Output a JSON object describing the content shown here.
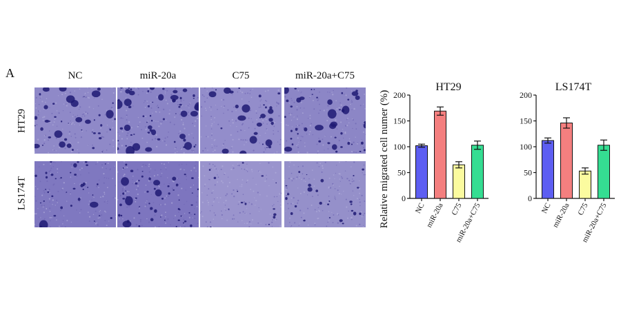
{
  "panel_label": "A",
  "image_grid": {
    "columns": [
      "NC",
      "miR-20a",
      "C75",
      "miR-20a+C75"
    ],
    "rows": [
      "HT29",
      "LS174T"
    ]
  },
  "colors": {
    "stain_bg": "#8c86c4",
    "stain_dark": "#1f1a73",
    "bar_colors": [
      "#5d5ef2",
      "#f47f7f",
      "#fbfb9f",
      "#35dd92"
    ]
  },
  "chart_data": [
    {
      "type": "bar",
      "title": "HT29",
      "ylabel": "Relative migrated cell numer (%)",
      "categories": [
        "NC",
        "miR-20a",
        "C75",
        "miR-20a+C75"
      ],
      "values": [
        102,
        169,
        65,
        103
      ],
      "errors": [
        3,
        8,
        6,
        8
      ],
      "ylim": [
        0,
        200
      ],
      "yticks": [
        0,
        50,
        100,
        150,
        200
      ]
    },
    {
      "type": "bar",
      "title": "LS174T",
      "ylabel": "",
      "categories": [
        "NC",
        "miR-20a",
        "C75",
        "miR-20a+C75"
      ],
      "values": [
        112,
        146,
        53,
        103
      ],
      "errors": [
        5,
        10,
        6,
        10
      ],
      "ylim": [
        0,
        200
      ],
      "yticks": [
        0,
        50,
        100,
        150,
        200
      ]
    }
  ]
}
